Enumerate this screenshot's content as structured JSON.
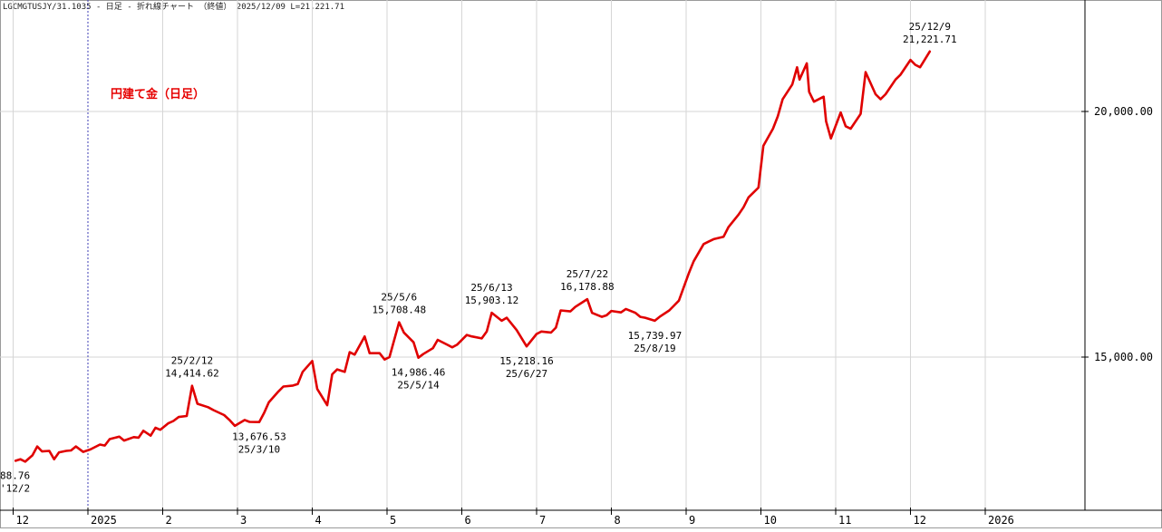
{
  "header": "LGCMGTUSJY/31.1035 - 日足 - 折れ線チャート （終値） 2025/12/09 L=21,221.71",
  "chart_data": {
    "type": "line",
    "inset_label": "円建て金（日足）",
    "y_ticks": [
      {
        "value": 20000,
        "label": "20,000.00"
      },
      {
        "value": 15000,
        "label": "15,000.00"
      }
    ],
    "x_ticks": [
      {
        "label": "12",
        "month_index": -1
      },
      {
        "label": "2025",
        "month_index": 0
      },
      {
        "label": "2",
        "month_index": 1
      },
      {
        "label": "3",
        "month_index": 2
      },
      {
        "label": "4",
        "month_index": 3
      },
      {
        "label": "5",
        "month_index": 4
      },
      {
        "label": "6",
        "month_index": 5
      },
      {
        "label": "7",
        "month_index": 6
      },
      {
        "label": "8",
        "month_index": 7
      },
      {
        "label": "9",
        "month_index": 8
      },
      {
        "label": "10",
        "month_index": 9
      },
      {
        "label": "11",
        "month_index": 10
      },
      {
        "label": "12",
        "month_index": 11
      },
      {
        "label": "2026",
        "month_index": 12
      }
    ],
    "series": [
      {
        "color": "#e00000",
        "points": [
          [
            "2024-12-02",
            12888.76
          ],
          [
            "2024-12-04",
            12920
          ],
          [
            "2024-12-06",
            12870
          ],
          [
            "2024-12-09",
            13000
          ],
          [
            "2024-12-11",
            13180
          ],
          [
            "2024-12-13",
            13080
          ],
          [
            "2024-12-16",
            13090
          ],
          [
            "2024-12-18",
            12920
          ],
          [
            "2024-12-20",
            13060
          ],
          [
            "2024-12-23",
            13090
          ],
          [
            "2024-12-25",
            13100
          ],
          [
            "2024-12-27",
            13180
          ],
          [
            "2024-12-30",
            13070
          ],
          [
            "2025-01-02",
            13120
          ],
          [
            "2025-01-06",
            13220
          ],
          [
            "2025-01-08",
            13200
          ],
          [
            "2025-01-10",
            13330
          ],
          [
            "2025-01-14",
            13380
          ],
          [
            "2025-01-16",
            13300
          ],
          [
            "2025-01-20",
            13370
          ],
          [
            "2025-01-22",
            13360
          ],
          [
            "2025-01-24",
            13500
          ],
          [
            "2025-01-27",
            13400
          ],
          [
            "2025-01-29",
            13560
          ],
          [
            "2025-01-31",
            13520
          ],
          [
            "2025-02-03",
            13650
          ],
          [
            "2025-02-05",
            13700
          ],
          [
            "2025-02-07",
            13780
          ],
          [
            "2025-02-10",
            13800
          ],
          [
            "2025-02-12",
            14414.62
          ],
          [
            "2025-02-14",
            14050
          ],
          [
            "2025-02-18",
            13980
          ],
          [
            "2025-02-20",
            13920
          ],
          [
            "2025-02-24",
            13820
          ],
          [
            "2025-02-26",
            13720
          ],
          [
            "2025-02-28",
            13600
          ],
          [
            "2025-03-04",
            13720
          ],
          [
            "2025-03-06",
            13680
          ],
          [
            "2025-03-10",
            13676.53
          ],
          [
            "2025-03-12",
            13860
          ],
          [
            "2025-03-14",
            14080
          ],
          [
            "2025-03-18",
            14300
          ],
          [
            "2025-03-20",
            14400
          ],
          [
            "2025-03-24",
            14420
          ],
          [
            "2025-03-26",
            14450
          ],
          [
            "2025-03-28",
            14700
          ],
          [
            "2025-04-01",
            14920
          ],
          [
            "2025-04-03",
            14350
          ],
          [
            "2025-04-07",
            14020
          ],
          [
            "2025-04-09",
            14650
          ],
          [
            "2025-04-11",
            14750
          ],
          [
            "2025-04-14",
            14700
          ],
          [
            "2025-04-16",
            15100
          ],
          [
            "2025-04-18",
            15050
          ],
          [
            "2025-04-22",
            15420
          ],
          [
            "2025-04-24",
            15080
          ],
          [
            "2025-04-28",
            15080
          ],
          [
            "2025-04-30",
            14950
          ],
          [
            "2025-05-02",
            15000
          ],
          [
            "2025-05-06",
            15708.48
          ],
          [
            "2025-05-08",
            15500
          ],
          [
            "2025-05-12",
            15300
          ],
          [
            "2025-05-14",
            14986.46
          ],
          [
            "2025-05-16",
            15060
          ],
          [
            "2025-05-20",
            15180
          ],
          [
            "2025-05-22",
            15350
          ],
          [
            "2025-05-26",
            15250
          ],
          [
            "2025-05-28",
            15200
          ],
          [
            "2025-05-30",
            15250
          ],
          [
            "2025-06-03",
            15450
          ],
          [
            "2025-06-05",
            15420
          ],
          [
            "2025-06-09",
            15380
          ],
          [
            "2025-06-11",
            15520
          ],
          [
            "2025-06-13",
            15903.12
          ],
          [
            "2025-06-17",
            15740
          ],
          [
            "2025-06-19",
            15800
          ],
          [
            "2025-06-23",
            15550
          ],
          [
            "2025-06-27",
            15218.16
          ],
          [
            "2025-07-01",
            15470
          ],
          [
            "2025-07-03",
            15520
          ],
          [
            "2025-07-07",
            15500
          ],
          [
            "2025-07-09",
            15600
          ],
          [
            "2025-07-11",
            15950
          ],
          [
            "2025-07-15",
            15930
          ],
          [
            "2025-07-17",
            16020
          ],
          [
            "2025-07-22",
            16178.88
          ],
          [
            "2025-07-24",
            15900
          ],
          [
            "2025-07-28",
            15820
          ],
          [
            "2025-07-30",
            15850
          ],
          [
            "2025-08-01",
            15940
          ],
          [
            "2025-08-05",
            15910
          ],
          [
            "2025-08-07",
            15980
          ],
          [
            "2025-08-11",
            15900
          ],
          [
            "2025-08-13",
            15820
          ],
          [
            "2025-08-15",
            15800
          ],
          [
            "2025-08-19",
            15739.97
          ],
          [
            "2025-08-21",
            15820
          ],
          [
            "2025-08-25",
            15950
          ],
          [
            "2025-08-27",
            16050
          ],
          [
            "2025-08-29",
            16150
          ],
          [
            "2025-09-02",
            16700
          ],
          [
            "2025-09-04",
            16950
          ],
          [
            "2025-09-08",
            17300
          ],
          [
            "2025-09-10",
            17350
          ],
          [
            "2025-09-12",
            17400
          ],
          [
            "2025-09-16",
            17450
          ],
          [
            "2025-09-18",
            17650
          ],
          [
            "2025-09-22",
            17900
          ],
          [
            "2025-09-24",
            18050
          ],
          [
            "2025-09-26",
            18250
          ],
          [
            "2025-09-30",
            18450
          ],
          [
            "2025-10-02",
            19300
          ],
          [
            "2025-10-06",
            19650
          ],
          [
            "2025-10-08",
            19900
          ],
          [
            "2025-10-10",
            20250
          ],
          [
            "2025-10-14",
            20550
          ],
          [
            "2025-10-16",
            20900
          ],
          [
            "2025-10-17",
            20650
          ],
          [
            "2025-10-20",
            20980
          ],
          [
            "2025-10-21",
            20400
          ],
          [
            "2025-10-23",
            20200
          ],
          [
            "2025-10-27",
            20300
          ],
          [
            "2025-10-28",
            19800
          ],
          [
            "2025-10-30",
            19450
          ],
          [
            "2025-11-03",
            19980
          ],
          [
            "2025-11-05",
            19700
          ],
          [
            "2025-11-07",
            19650
          ],
          [
            "2025-11-11",
            19950
          ],
          [
            "2025-11-13",
            20800
          ],
          [
            "2025-11-17",
            20350
          ],
          [
            "2025-11-19",
            20250
          ],
          [
            "2025-11-21",
            20350
          ],
          [
            "2025-11-25",
            20650
          ],
          [
            "2025-11-27",
            20750
          ],
          [
            "2025-12-01",
            21050
          ],
          [
            "2025-12-03",
            20950
          ],
          [
            "2025-12-05",
            20900
          ],
          [
            "2025-12-09",
            21221.71
          ]
        ]
      }
    ],
    "annotations": [
      {
        "date": "2024-12-02",
        "value": 12888.76,
        "text": [
          "88.76",
          "'12/2"
        ],
        "position": "below"
      },
      {
        "date": "2025-02-12",
        "value": 14414.62,
        "text": [
          "25/2/12",
          "14,414.62"
        ],
        "position": "above"
      },
      {
        "date": "2025-03-10",
        "value": 13676.53,
        "text": [
          "13,676.53",
          "25/3/10"
        ],
        "position": "below"
      },
      {
        "date": "2025-05-06",
        "value": 15708.48,
        "text": [
          "25/5/6",
          "15,708.48"
        ],
        "position": "above"
      },
      {
        "date": "2025-05-14",
        "value": 14986.46,
        "text": [
          "14,986.46",
          "25/5/14"
        ],
        "position": "below"
      },
      {
        "date": "2025-06-13",
        "value": 15903.12,
        "text": [
          "25/6/13",
          "15,903.12"
        ],
        "position": "above"
      },
      {
        "date": "2025-06-27",
        "value": 15218.16,
        "text": [
          "15,218.16",
          "25/6/27"
        ],
        "position": "below"
      },
      {
        "date": "2025-07-22",
        "value": 16178.88,
        "text": [
          "25/7/22",
          "16,178.88"
        ],
        "position": "above"
      },
      {
        "date": "2025-08-19",
        "value": 15739.97,
        "text": [
          "15,739.97",
          "25/8/19"
        ],
        "position": "below"
      },
      {
        "date": "2025-12-09",
        "value": 21221.71,
        "text": [
          "25/12/9",
          "21,221.71"
        ],
        "position": "above"
      }
    ]
  }
}
